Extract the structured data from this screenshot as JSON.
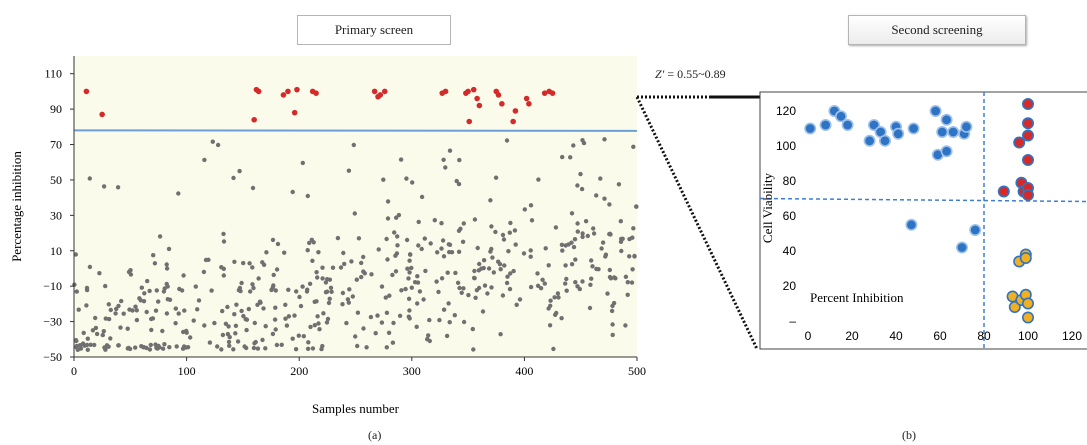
{
  "panel_a": {
    "title": "Primary screen",
    "label": "(a)"
  },
  "panel_b": {
    "title": "Second screening",
    "label": "(b)",
    "z_factor_symbol": "Z′",
    "z_factor_value": " = 0.55~0.89"
  },
  "colors": {
    "plot_bg_a": "#fbfbeb",
    "gray_point": "#707070",
    "red_point": "#d42a2a",
    "threshold_line": "#6a9fd8",
    "blue_point": "#2f74c4",
    "blue_edge": "#9ec1ea",
    "orange_point": "#f0b020",
    "dashed_line": "#3f7fd0"
  },
  "chart_data": [
    {
      "type": "scatter",
      "xlabel": "Samples number",
      "ylabel": "Percentage inhibition",
      "xlim": [
        0,
        500
      ],
      "ylim": [
        -50,
        120
      ],
      "x_ticks": [
        0,
        100,
        200,
        300,
        400,
        500
      ],
      "y_ticks": [
        -50,
        -30,
        -10,
        10,
        30,
        50,
        70,
        90,
        110
      ],
      "threshold": 78,
      "grid": false,
      "hits": [
        [
          11,
          100
        ],
        [
          25,
          87
        ],
        [
          160,
          84
        ],
        [
          162,
          101
        ],
        [
          164,
          100
        ],
        [
          186,
          98
        ],
        [
          190,
          100
        ],
        [
          196,
          88
        ],
        [
          198,
          101
        ],
        [
          212,
          100
        ],
        [
          215,
          99
        ],
        [
          267,
          100
        ],
        [
          270,
          97
        ],
        [
          272,
          98
        ],
        [
          276,
          100
        ],
        [
          327,
          99
        ],
        [
          330,
          100
        ],
        [
          348,
          99
        ],
        [
          350,
          100
        ],
        [
          351,
          83
        ],
        [
          355,
          101
        ],
        [
          358,
          96
        ],
        [
          360,
          92
        ],
        [
          375,
          100
        ],
        [
          377,
          98
        ],
        [
          380,
          93
        ],
        [
          390,
          83
        ],
        [
          392,
          89
        ],
        [
          402,
          96
        ],
        [
          404,
          93
        ],
        [
          418,
          99
        ],
        [
          422,
          100
        ],
        [
          425,
          99
        ]
      ]
    },
    {
      "type": "scatter",
      "xlabel": "Percent Inhibition",
      "ylabel": "Cell Viability",
      "xlim": [
        0,
        120
      ],
      "ylim": [
        0,
        125
      ],
      "x_ticks": [
        0,
        20,
        40,
        60,
        80,
        100,
        120
      ],
      "y_ticks": [
        20,
        40,
        60,
        80,
        100,
        120
      ],
      "y_tick_labels": [
        "20",
        "40",
        "60",
        "80",
        "100",
        "120"
      ],
      "zero_tick_label": "–",
      "vline": 80,
      "hline": 70,
      "series": [
        {
          "points": [
            [
              1,
              110
            ],
            [
              8,
              112
            ],
            [
              12,
              120
            ],
            [
              15,
              117
            ],
            [
              18,
              112
            ],
            [
              28,
              103
            ],
            [
              30,
              112
            ],
            [
              33,
              108
            ],
            [
              35,
              103
            ],
            [
              40,
              111
            ],
            [
              41,
              107
            ],
            [
              47,
              55
            ],
            [
              48,
              110
            ],
            [
              58,
              120
            ],
            [
              59,
              95
            ],
            [
              61,
              108
            ],
            [
              63,
              97
            ],
            [
              63,
              115
            ],
            [
              66,
              108
            ],
            [
              70,
              42
            ],
            [
              71,
              107
            ],
            [
              72,
              111
            ],
            [
              76,
              52
            ]
          ]
        },
        {
          "points": [
            [
              89,
              74
            ],
            [
              96,
              102
            ],
            [
              97,
              79
            ],
            [
              98,
              74
            ],
            [
              100,
              124
            ],
            [
              100,
              113
            ],
            [
              100,
              106
            ],
            [
              100,
              92
            ],
            [
              100,
              76
            ],
            [
              100,
              72
            ]
          ]
        },
        {
          "points": [
            [
              93,
              14
            ],
            [
              94,
              8
            ],
            [
              96,
              34
            ],
            [
              97,
              12
            ],
            [
              99,
              38
            ],
            [
              99,
              36
            ],
            [
              99,
              15
            ],
            [
              100,
              10
            ],
            [
              100,
              2
            ]
          ]
        }
      ]
    }
  ]
}
